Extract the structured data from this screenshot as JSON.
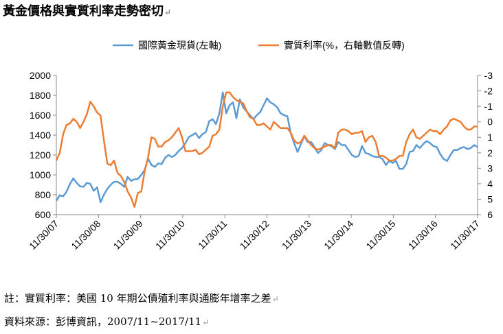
{
  "title": "黃金價格與實質利率走勢密切",
  "note_line1": "註：實質利率：美國 10 年期公債殖利率與通膨年增率之差",
  "note_line2": "資料來源：彭博資訊，2007/11~2017/11",
  "paragraph_mark": "↵",
  "chart_data": {
    "type": "line",
    "title": "黃金價格與實質利率走勢密切",
    "legend_position": "top",
    "grid": false,
    "colors": {
      "gold": "#5b9bd5",
      "real_rate": "#ed7d31",
      "axis": "#888888"
    },
    "x_ticks": [
      "11/30/07",
      "11/30/08",
      "11/30/09",
      "11/30/10",
      "11/30/11",
      "11/30/12",
      "11/30/13",
      "11/30/14",
      "11/30/15",
      "11/30/16",
      "11/30/17"
    ],
    "y_left": {
      "min": 600,
      "max": 2000,
      "step": 200,
      "ticks": [
        "600",
        "800",
        "1000",
        "1200",
        "1400",
        "1600",
        "1800",
        "2000"
      ]
    },
    "y_right": {
      "min": -3,
      "max": 6,
      "step": 1,
      "inverted": true,
      "ticks": [
        "-3",
        "-2",
        "-1",
        "0",
        "1",
        "2",
        "3",
        "4",
        "5",
        "6"
      ]
    },
    "series": [
      {
        "name": "國際黃金現貨(左軸)",
        "axis": "left",
        "values": [
          740,
          795,
          785,
          830,
          910,
          965,
          920,
          885,
          880,
          920,
          910,
          840,
          875,
          725,
          800,
          860,
          900,
          930,
          930,
          910,
          880,
          980,
          940,
          955,
          960,
          1000,
          1050,
          1165,
          1100,
          1080,
          1115,
          1110,
          1170,
          1200,
          1180,
          1200,
          1240,
          1270,
          1320,
          1380,
          1400,
          1420,
          1370,
          1410,
          1430,
          1540,
          1560,
          1510,
          1620,
          1830,
          1620,
          1700,
          1730,
          1570,
          1760,
          1680,
          1640,
          1600,
          1560,
          1600,
          1630,
          1700,
          1770,
          1730,
          1710,
          1680,
          1620,
          1600,
          1590,
          1420,
          1320,
          1230,
          1310,
          1390,
          1330,
          1330,
          1280,
          1220,
          1250,
          1320,
          1300,
          1290,
          1260,
          1330,
          1300,
          1300,
          1250,
          1200,
          1180,
          1190,
          1290,
          1220,
          1210,
          1190,
          1180,
          1180,
          1160,
          1100,
          1140,
          1120,
          1140,
          1060,
          1060,
          1110,
          1230,
          1240,
          1300,
          1270,
          1310,
          1340,
          1320,
          1290,
          1280,
          1210,
          1160,
          1140,
          1200,
          1250,
          1250,
          1270,
          1280,
          1260,
          1270,
          1300,
          1280
        ]
      },
      {
        "name": "實質利率(%，右軸數值反轉)",
        "axis": "right",
        "values": [
          2.5,
          2.0,
          0.8,
          0.2,
          0.1,
          -0.2,
          0.0,
          0.4,
          0.0,
          -0.5,
          -1.3,
          -1.0,
          -0.6,
          -0.4,
          1.2,
          2.7,
          2.8,
          2.5,
          3.3,
          3.5,
          3.9,
          4.5,
          4.9,
          5.5,
          4.6,
          4.5,
          3.2,
          2.3,
          1.0,
          1.1,
          1.6,
          1.6,
          1.3,
          1.2,
          1.0,
          0.7,
          0.4,
          1.0,
          1.9,
          1.9,
          1.9,
          1.8,
          2.1,
          2.0,
          1.8,
          1.6,
          0.9,
          0.8,
          0.5,
          -1.0,
          -1.9,
          -1.9,
          -1.6,
          -1.4,
          -1.3,
          -1.2,
          -0.7,
          -0.3,
          -0.2,
          0.2,
          0.2,
          0.1,
          0.3,
          0.5,
          0.0,
          0.2,
          0.4,
          0.4,
          0.4,
          0.7,
          1.2,
          1.4,
          1.3,
          0.9,
          1.2,
          1.5,
          1.7,
          1.8,
          1.7,
          1.6,
          1.5,
          1.5,
          1.7,
          0.7,
          0.5,
          0.5,
          0.6,
          0.8,
          0.7,
          0.7,
          0.6,
          1.3,
          1.0,
          0.9,
          1.3,
          2.2,
          2.2,
          2.3,
          2.5,
          2.5,
          2.4,
          2.2,
          2.2,
          1.3,
          0.8,
          0.5,
          1.0,
          1.1,
          0.9,
          0.7,
          0.5,
          0.6,
          0.6,
          0.8,
          0.5,
          0.3,
          -0.1,
          -0.2,
          -0.1,
          0.0,
          0.3,
          0.5,
          0.5,
          0.3,
          0.3
        ]
      }
    ]
  }
}
